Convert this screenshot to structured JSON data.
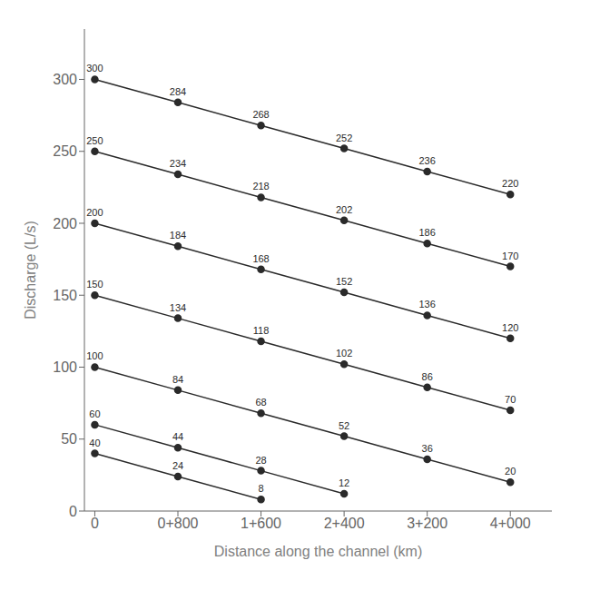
{
  "chart_data": {
    "type": "line",
    "xlabel": "Distance along the channel (km)",
    "ylabel": "Discharge (L/s)",
    "x": [
      0,
      800,
      1600,
      2400,
      3200,
      4000
    ],
    "xlim": [
      -100,
      4400
    ],
    "xticks": [
      0,
      {
        "value": 800,
        "label": "0+800"
      },
      {
        "value": 1600,
        "label": "1+600"
      },
      {
        "value": 2400,
        "label": "2+400"
      },
      {
        "value": 3200,
        "label": "3+200"
      },
      {
        "value": 4000,
        "label": "4+000"
      }
    ],
    "ylim": [
      0,
      335
    ],
    "yticks": [
      0,
      50,
      100,
      150,
      200,
      250,
      300
    ],
    "grid": false,
    "data_labels": true,
    "marker": "circle",
    "series": [
      {
        "color": "#2a2a2a",
        "values": [
          300,
          284,
          268,
          252,
          236,
          220
        ]
      },
      {
        "color": "#2a2a2a",
        "values": [
          250,
          234,
          218,
          202,
          186,
          170
        ]
      },
      {
        "color": "#2a2a2a",
        "values": [
          200,
          184,
          168,
          152,
          136,
          120
        ]
      },
      {
        "color": "#2a2a2a",
        "values": [
          150,
          134,
          118,
          102,
          86,
          70
        ]
      },
      {
        "color": "#2a2a2a",
        "values": [
          100,
          84,
          68,
          52,
          36,
          20
        ]
      },
      {
        "color": "#2a2a2a",
        "values": [
          60,
          44,
          28,
          12,
          null,
          null
        ]
      },
      {
        "color": "#2a2a2a",
        "values": [
          40,
          24,
          8,
          null,
          null,
          null
        ]
      }
    ]
  }
}
